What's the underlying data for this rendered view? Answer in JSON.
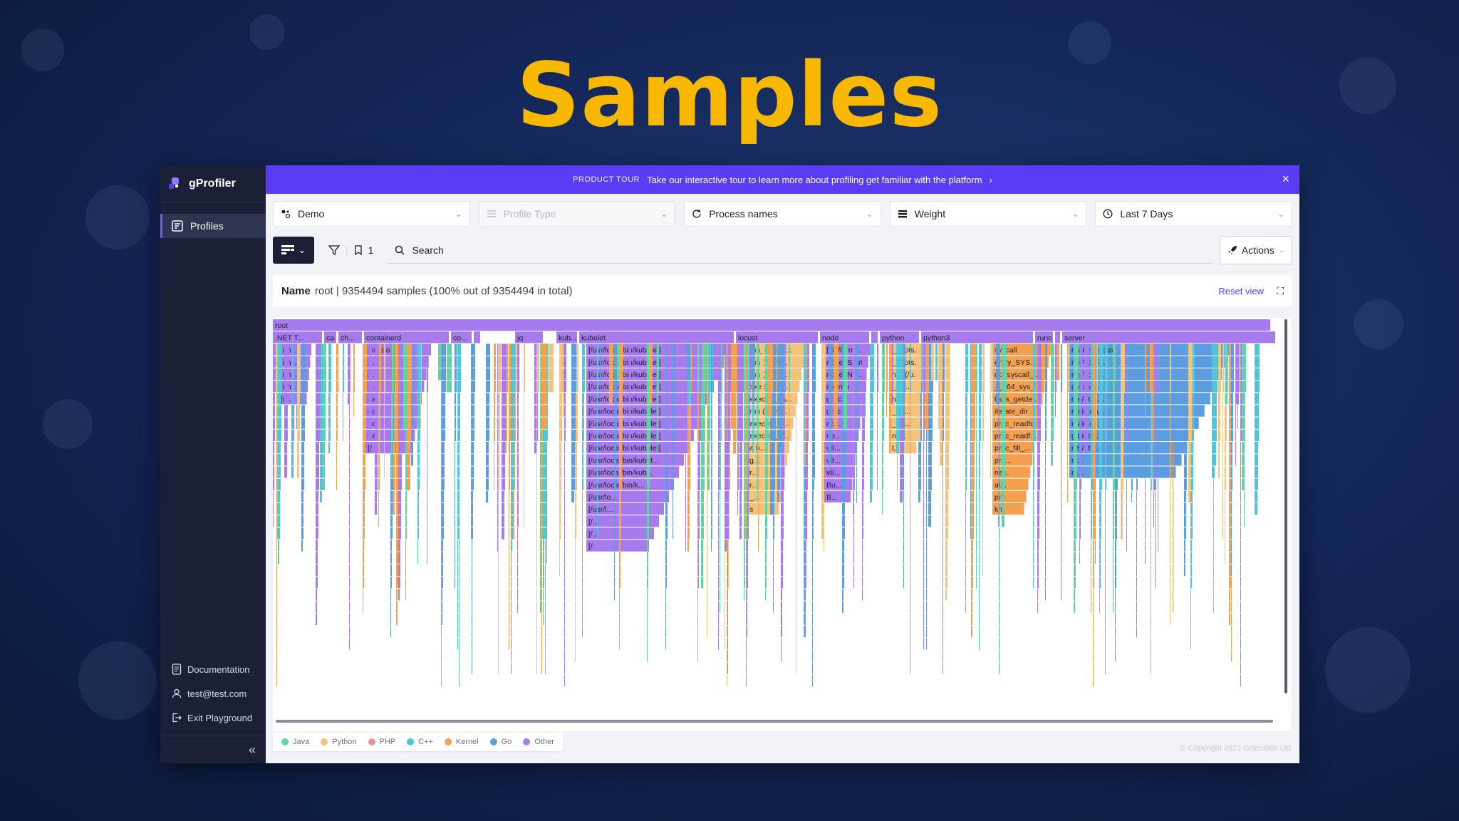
{
  "headline": "Samples",
  "app": {
    "logo_text": "gProfiler",
    "nav": [
      {
        "label": "Profiles",
        "icon": "profiles-icon",
        "active": true
      }
    ],
    "bottom_links": [
      {
        "label": "Documentation",
        "icon": "document-icon"
      },
      {
        "label": "test@test.com",
        "icon": "user-icon"
      },
      {
        "label": "Exit Playground",
        "icon": "exit-icon"
      }
    ],
    "collapse_glyph": "«"
  },
  "banner": {
    "tag": "PRODUCT TOUR",
    "text": "Take our interactive tour to learn more about profiling get familiar with the platform",
    "arrow": "›",
    "close": "×"
  },
  "filters": [
    {
      "label": "Demo",
      "icon": "service-icon",
      "disabled": false
    },
    {
      "label": "Profile Type",
      "icon": "list-icon",
      "disabled": true
    },
    {
      "label": "Process names",
      "icon": "refresh-icon",
      "disabled": false
    },
    {
      "label": "Weight",
      "icon": "stack-icon",
      "disabled": false
    },
    {
      "label": "Last 7 Days",
      "icon": "clock-icon",
      "disabled": false
    }
  ],
  "toolbar": {
    "filter_count": "1",
    "search_placeholder": "Search",
    "actions_label": "Actions"
  },
  "namebar": {
    "name_label": "Name",
    "value": "root | 9354494 samples (100% out of 9354494 in total)",
    "reset_label": "Reset view"
  },
  "legend": [
    {
      "label": "Java",
      "color": "#5fd3a4"
    },
    {
      "label": "Python",
      "color": "#f4c27a"
    },
    {
      "label": "PHP",
      "color": "#f0928f"
    },
    {
      "label": "C++",
      "color": "#4cc7d9"
    },
    {
      "label": "Kernel",
      "color": "#f5a04e"
    },
    {
      "label": "Go",
      "color": "#5b9de0"
    },
    {
      "label": "Other",
      "color": "#a77bef"
    }
  ],
  "copyright": "© Copyright 2021 Granulate Ltd",
  "flame": {
    "root_label": "root",
    "colors": {
      "other": "#a77bef",
      "kernel": "#f5a04e",
      "python": "#f4c27a",
      "cpp": "#4cc7d9",
      "go": "#5b9de0",
      "java": "#5fd3a4"
    },
    "row1": [
      {
        "label": ".NET T...",
        "lang": "other"
      },
      {
        "label": "ca",
        "lang": "other"
      },
      {
        "label": "ch...",
        "lang": "other"
      },
      {
        "label": "containerd",
        "lang": "other"
      },
      {
        "label": "co...",
        "lang": "other"
      },
      {
        "label": "e",
        "lang": "other"
      },
      {
        "label": "jq",
        "lang": "other"
      },
      {
        "label": "kub...",
        "lang": "other"
      },
      {
        "label": "kubelet",
        "lang": "other"
      },
      {
        "label": "locust",
        "lang": "other"
      },
      {
        "label": "node",
        "lang": "other"
      },
      {
        "label": "py",
        "lang": "other"
      },
      {
        "label": "python",
        "lang": "other"
      },
      {
        "label": "python3",
        "lang": "other"
      },
      {
        "label": "runc",
        "lang": "other"
      },
      {
        "label": "r",
        "lang": "other"
      },
      {
        "label": "server",
        "lang": "other"
      }
    ],
    "cols": [
      {
        "labels": [
          "[unk...",
          "[unk...",
          "[un...",
          "[un...",
          "[u..."
        ],
        "lang": "other"
      },
      {
        "labels": [
          "[unknown]",
          "[/...",
          "[/...",
          "[/...",
          "pa",
          "do",
          "_c",
          "ha",
          "[/"
        ],
        "lang": "other"
      },
      {
        "labels": [
          "[/usr/local/bin/kubelet]",
          "[/usr/local/bin/kubelet]",
          "[/usr/local/bin/kubelet]",
          "[/usr/local/bin/kubelet]",
          "[/usr/local/bin/kubelet]",
          "[/usr/local/bin/kubelet]",
          "[/usr/local/bin/kubelet]",
          "[/usr/local/bin/kubelet]",
          "[/usr/local/bin/kubelet]",
          "[/usr/local/bin/kubel...",
          "[/usr/local/bin/kub...",
          "[/usr/local/bin/k...",
          "[/usr/lo...",
          "[/usr/l...",
          "[/...",
          "[/...",
          "[/"
        ],
        "lang": "other"
      },
      {
        "labels": [
          "run_user (/...",
          "run (/usr/l...",
          "run (/usr/l...",
          "execute_n...",
          "execute_ta...",
          "run (/usr/l...",
          "execute_n...",
          "execute_t...",
          "a b...",
          "g...",
          "r...",
          "r...",
          "_...",
          "s"
        ],
        "lang": "python"
      },
      {
        "labels": [
          "[/lib/ld-mu...",
          "node::Start",
          "node::No...",
          "uv_run",
          "grpc...",
          "grpc...",
          "no...",
          "no...",
          "v8...",
          "v8...",
          "v8...",
          "Bu...",
          "B..."
        ],
        "lang": "other"
      },
      {
        "labels": [
          "_boots...",
          "_boots...",
          "run (/u...",
          "_wo...",
          "run",
          "_un...",
          "_ca...",
          "ne...",
          "Li"
        ],
        "lang": "python"
      },
      {
        "labels": [
          "syscall",
          "entry_SYS...",
          "do_syscall_...",
          "__x64_sys_...",
          "ksys_getde...",
          "iterate_dir",
          "proc_readfd",
          "proc_readf...",
          "proc_fill_...",
          "pro...",
          "ne...",
          "al...",
          "prc",
          "km"
        ],
        "lang": "kernel"
      },
      {
        "labels": [
          "runtime.goexit",
          "net/http.(...",
          "net/http....",
          "go.open...",
          "net/http....",
          "main.en...",
          "main.(*l...",
          "github....",
          "net/htt...",
          "m...",
          "m..."
        ],
        "lang": "go"
      }
    ]
  }
}
